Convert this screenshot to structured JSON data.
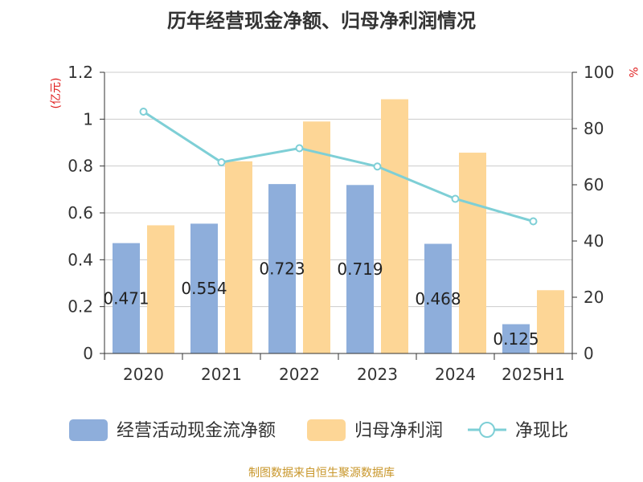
{
  "title": "历年经营现金净额、归母净利润情况",
  "footer": "制图数据来自恒生聚源数据库",
  "colors": {
    "bar1": "#8eaedb",
    "bar2": "#fdd696",
    "line": "#7ecfd6",
    "axis": "#333333",
    "grid": "#cccccc",
    "unit": "#e02020",
    "footer": "#c8962a",
    "title": "#333333"
  },
  "chart_data": {
    "type": "bar",
    "categories": [
      "2020",
      "2021",
      "2022",
      "2023",
      "2024",
      "2025H1"
    ],
    "y_left": {
      "unit": "(亿元)",
      "min": 0,
      "max": 1.2,
      "ticks": [
        0,
        0.2,
        0.4,
        0.6,
        0.8,
        1,
        1.2
      ],
      "tick_labels": [
        "0",
        "0.2",
        "0.4",
        "0.6",
        "0.8",
        "1",
        "1.2"
      ]
    },
    "y_right": {
      "unit": "%",
      "min": 0,
      "max": 100,
      "ticks": [
        0,
        20,
        40,
        60,
        80,
        100
      ]
    },
    "grid": true,
    "legend_position": "bottom",
    "series": [
      {
        "name": "经营活动现金流净额",
        "type": "bar",
        "axis": "left",
        "values": [
          0.471,
          0.554,
          0.723,
          0.719,
          0.468,
          0.125
        ],
        "labels": [
          "0.471",
          "0.554",
          "0.723",
          "0.719",
          "0.468",
          "0.125"
        ]
      },
      {
        "name": "归母净利润",
        "type": "bar",
        "axis": "left",
        "values": [
          0.547,
          0.82,
          0.99,
          1.085,
          0.857,
          0.27
        ]
      },
      {
        "name": "净现比",
        "type": "line",
        "axis": "right",
        "values": [
          86,
          68,
          73,
          66.5,
          55,
          47
        ]
      }
    ]
  }
}
